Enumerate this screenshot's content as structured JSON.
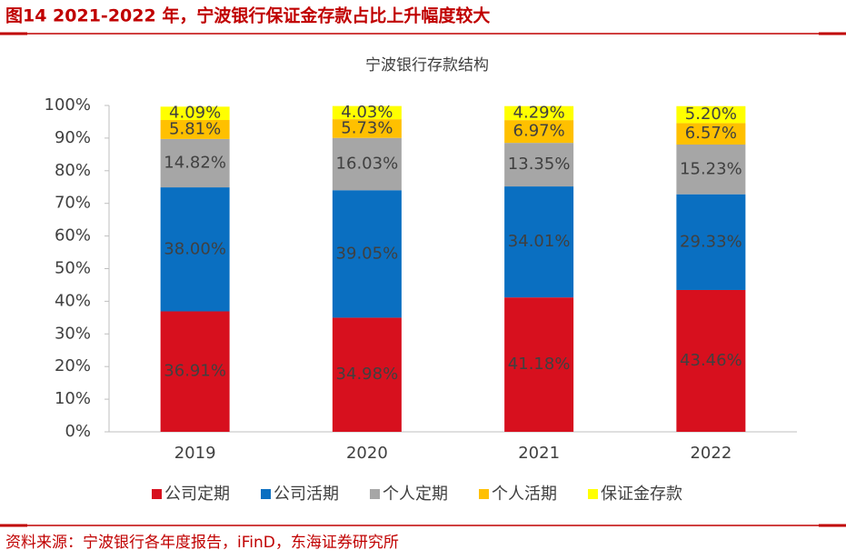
{
  "header": {
    "title": "图14  2021-2022 年，宁波银行保证金存款占比上升幅度较大"
  },
  "source": "资料来源：宁波银行各年度报告，iFinD，东海证券研究所",
  "chart_data": {
    "type": "stacked_bar",
    "title": "宁波银行存款结构",
    "categories": [
      "2019",
      "2020",
      "2021",
      "2022"
    ],
    "series": [
      {
        "name": "公司定期",
        "color": "#d7101e",
        "values": [
          36.91,
          34.98,
          41.18,
          43.46
        ],
        "value_labels": [
          "36.91%",
          "34.98%",
          "41.18%",
          "43.46%"
        ]
      },
      {
        "name": "公司活期",
        "color": "#0a6fc1",
        "values": [
          38.0,
          39.05,
          34.01,
          29.33
        ],
        "value_labels": [
          "38.00%",
          "39.05%",
          "34.01%",
          "29.33%"
        ]
      },
      {
        "name": "个人定期",
        "color": "#a6a6a6",
        "values": [
          14.82,
          16.03,
          13.35,
          15.23
        ],
        "value_labels": [
          "14.82%",
          "16.03%",
          "13.35%",
          "15.23%"
        ]
      },
      {
        "name": "个人活期",
        "color": "#ffc000",
        "values": [
          5.81,
          5.73,
          6.97,
          6.57
        ],
        "value_labels": [
          "5.81%",
          "5.73%",
          "6.97%",
          "6.57%"
        ]
      },
      {
        "name": "保证金存款",
        "color": "#ffff00",
        "values": [
          4.09,
          4.03,
          4.29,
          5.2
        ],
        "value_labels": [
          "4.09%",
          "4.03%",
          "4.29%",
          "5.20%"
        ]
      }
    ],
    "ylim": [
      0,
      100
    ],
    "yticks": [
      {
        "value": 0,
        "label": "0%"
      },
      {
        "value": 10,
        "label": "10%"
      },
      {
        "value": 20,
        "label": "20%"
      },
      {
        "value": 30,
        "label": "30%"
      },
      {
        "value": 40,
        "label": "40%"
      },
      {
        "value": 50,
        "label": "50%"
      },
      {
        "value": 60,
        "label": "60%"
      },
      {
        "value": 70,
        "label": "70%"
      },
      {
        "value": 80,
        "label": "80%"
      },
      {
        "value": 90,
        "label": "90%"
      },
      {
        "value": 100,
        "label": "100%"
      }
    ],
    "legend": "bottom"
  }
}
